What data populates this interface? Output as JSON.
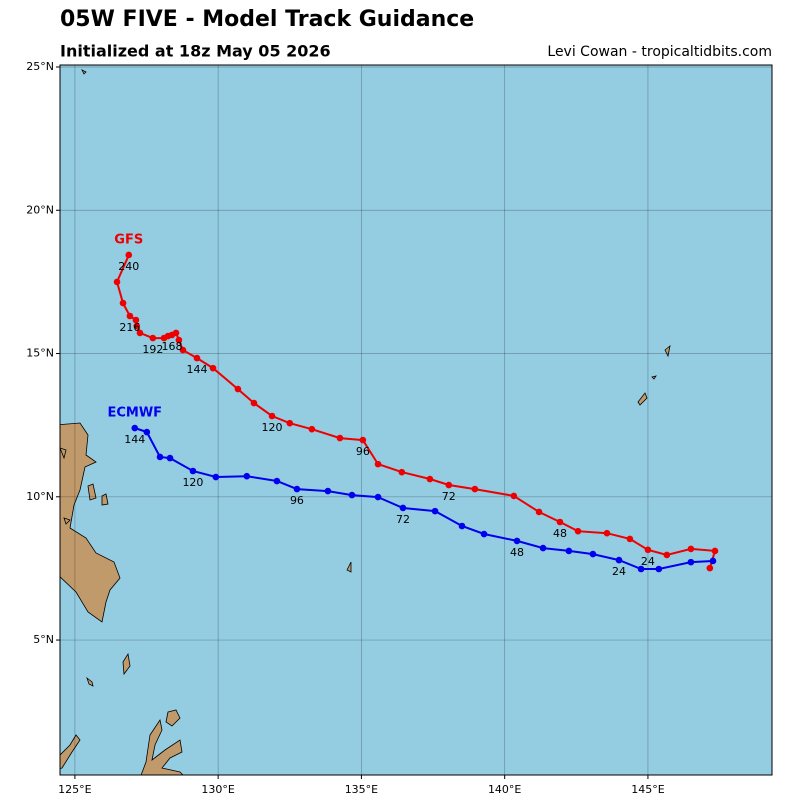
{
  "chart_data": {
    "type": "track-map",
    "title": "05W FIVE - Model Track Guidance",
    "subtitle": "Initialized at 18z May 05 2026",
    "credit": "Levi Cowan - tropicaltidbits.com",
    "xlim": [
      124.48,
      149.33
    ],
    "ylim": [
      0.29,
      25.07
    ],
    "xticks": [
      {
        "value": 125,
        "label": "125°E"
      },
      {
        "value": 130,
        "label": "130°E"
      },
      {
        "value": 135,
        "label": "135°E"
      },
      {
        "value": 140,
        "label": "140°E"
      },
      {
        "value": 145,
        "label": "145°E"
      }
    ],
    "yticks": [
      {
        "value": 5,
        "label": "5°N"
      },
      {
        "value": 10,
        "label": "10°N"
      },
      {
        "value": 15,
        "label": "15°N"
      },
      {
        "value": 20,
        "label": "20°N"
      },
      {
        "value": 25,
        "label": "25°N"
      }
    ],
    "grid": true,
    "series": [
      {
        "name": "GFS",
        "color": "#ee0000",
        "lon": [
          147.16,
          147.34,
          146.5,
          145.66,
          145.0,
          144.37,
          143.57,
          142.56,
          141.93,
          141.2,
          140.32,
          138.96,
          138.05,
          137.39,
          136.41,
          135.58,
          135.05,
          134.25,
          133.27,
          132.5,
          131.88,
          131.25,
          130.69,
          129.82,
          129.26,
          128.77,
          128.63,
          128.53,
          128.39,
          128.25,
          128.11,
          127.72,
          127.27,
          127.16,
          127.13,
          126.92,
          126.68,
          126.47,
          126.88
        ],
        "lat": [
          7.51,
          8.11,
          8.18,
          7.97,
          8.15,
          8.53,
          8.73,
          8.8,
          9.12,
          9.47,
          10.03,
          10.27,
          10.41,
          10.62,
          10.86,
          11.14,
          11.98,
          12.05,
          12.36,
          12.57,
          12.82,
          13.27,
          13.76,
          14.49,
          14.84,
          15.12,
          15.47,
          15.72,
          15.65,
          15.61,
          15.54,
          15.54,
          15.72,
          15.96,
          16.17,
          16.31,
          16.76,
          17.5,
          18.44
        ],
        "labels": [
          null,
          null,
          null,
          null,
          "24",
          null,
          null,
          null,
          "48",
          null,
          null,
          null,
          "72",
          null,
          null,
          null,
          "96",
          null,
          null,
          null,
          "120",
          null,
          null,
          null,
          "144",
          null,
          null,
          null,
          "168",
          null,
          null,
          "192",
          null,
          null,
          null,
          "216",
          null,
          null,
          "240"
        ]
      },
      {
        "name": "ECMWF",
        "color": "#0000ee",
        "lon": [
          147.27,
          146.5,
          145.38,
          144.76,
          143.99,
          143.08,
          142.24,
          141.34,
          140.43,
          139.28,
          138.51,
          137.57,
          136.45,
          135.58,
          134.67,
          133.83,
          132.75,
          132.05,
          131.0,
          129.92,
          129.12,
          128.32,
          127.97,
          127.51,
          127.09
        ],
        "lat": [
          7.76,
          7.72,
          7.48,
          7.48,
          7.79,
          8.0,
          8.11,
          8.21,
          8.46,
          8.7,
          8.98,
          9.5,
          9.61,
          9.99,
          10.06,
          10.2,
          10.27,
          10.55,
          10.72,
          10.69,
          10.9,
          11.35,
          11.39,
          12.26,
          12.4
        ],
        "labels": [
          null,
          null,
          null,
          null,
          "24",
          null,
          null,
          null,
          "48",
          null,
          null,
          null,
          "72",
          null,
          null,
          null,
          "96",
          null,
          null,
          null,
          "120",
          null,
          null,
          null,
          "144"
        ]
      }
    ]
  }
}
